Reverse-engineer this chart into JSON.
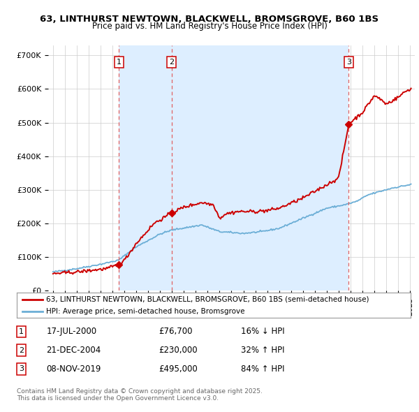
{
  "title": "63, LINTHURST NEWTOWN, BLACKWELL, BROMSGROVE, B60 1BS",
  "subtitle": "Price paid vs. HM Land Registry's House Price Index (HPI)",
  "ylim": [
    0,
    730000
  ],
  "yticks": [
    0,
    100000,
    200000,
    300000,
    400000,
    500000,
    600000,
    700000
  ],
  "ytick_labels": [
    "£0",
    "£100K",
    "£200K",
    "£300K",
    "£400K",
    "£500K",
    "£600K",
    "£700K"
  ],
  "xlim_start": 1994.6,
  "xlim_end": 2025.4,
  "transactions": [
    {
      "date": 2000.54,
      "price": 76700,
      "label": "1",
      "date_str": "17-JUL-2000",
      "price_str": "£76,700",
      "hpi_str": "16% ↓ HPI"
    },
    {
      "date": 2004.97,
      "price": 230000,
      "label": "2",
      "date_str": "21-DEC-2004",
      "price_str": "£230,000",
      "hpi_str": "32% ↑ HPI"
    },
    {
      "date": 2019.85,
      "price": 495000,
      "label": "3",
      "date_str": "08-NOV-2019",
      "price_str": "£495,000",
      "hpi_str": "84% ↑ HPI"
    }
  ],
  "hpi_line_color": "#6baed6",
  "price_color": "#cc0000",
  "transaction_box_color": "#cc0000",
  "vline_color": "#e06060",
  "shade_color": "#ddeeff",
  "legend_line1": "63, LINTHURST NEWTOWN, BLACKWELL, BROMSGROVE, B60 1BS (semi-detached house)",
  "legend_line2": "HPI: Average price, semi-detached house, Bromsgrove",
  "footer1": "Contains HM Land Registry data © Crown copyright and database right 2025.",
  "footer2": "This data is licensed under the Open Government Licence v3.0."
}
